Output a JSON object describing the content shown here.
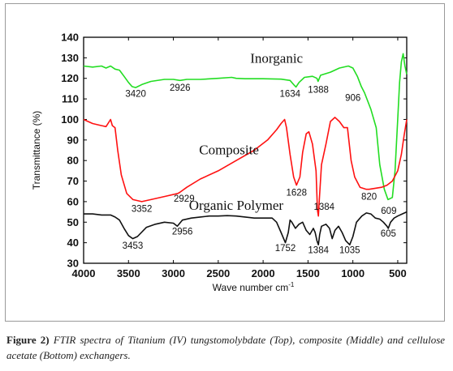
{
  "chart_data": {
    "type": "line",
    "xlabel": "Wave number cm",
    "xlabel_sup": "-1",
    "ylabel": "Transmittance (%)",
    "xlim": [
      4000,
      400
    ],
    "ylim": [
      30,
      140
    ],
    "x_ticks": [
      4000,
      3500,
      3000,
      2500,
      2000,
      1500,
      1000,
      500
    ],
    "y_ticks": [
      30,
      40,
      50,
      60,
      70,
      80,
      90,
      100,
      110,
      120,
      130,
      140
    ],
    "series": [
      {
        "name": "Inorganic",
        "color": "#22dd22",
        "label_pos": [
          1850,
          127.5
        ],
        "points": [
          [
            4000,
            126
          ],
          [
            3900,
            125.5
          ],
          [
            3800,
            126
          ],
          [
            3750,
            125
          ],
          [
            3700,
            126
          ],
          [
            3650,
            124.5
          ],
          [
            3600,
            124
          ],
          [
            3550,
            121
          ],
          [
            3500,
            118
          ],
          [
            3460,
            116
          ],
          [
            3420,
            115.5
          ],
          [
            3350,
            117
          ],
          [
            3250,
            118.5
          ],
          [
            3100,
            119.5
          ],
          [
            3000,
            119.5
          ],
          [
            2926,
            119
          ],
          [
            2850,
            119.5
          ],
          [
            2700,
            119.5
          ],
          [
            2500,
            120
          ],
          [
            2350,
            120.5
          ],
          [
            2300,
            120
          ],
          [
            2200,
            119.8
          ],
          [
            2000,
            119.8
          ],
          [
            1800,
            119.6
          ],
          [
            1700,
            119
          ],
          [
            1650,
            116.5
          ],
          [
            1634,
            115.8
          ],
          [
            1600,
            118
          ],
          [
            1540,
            120.5
          ],
          [
            1450,
            121
          ],
          [
            1400,
            120
          ],
          [
            1388,
            118.5
          ],
          [
            1360,
            121.5
          ],
          [
            1250,
            123
          ],
          [
            1150,
            125
          ],
          [
            1050,
            126
          ],
          [
            1000,
            125
          ],
          [
            950,
            121
          ],
          [
            906,
            116
          ],
          [
            870,
            113
          ],
          [
            800,
            105
          ],
          [
            740,
            96
          ],
          [
            700,
            78
          ],
          [
            650,
            66
          ],
          [
            609,
            61
          ],
          [
            560,
            62
          ],
          [
            530,
            75
          ],
          [
            500,
            100
          ],
          [
            480,
            118
          ],
          [
            460,
            128
          ],
          [
            440,
            132
          ],
          [
            420,
            126
          ],
          [
            400,
            122
          ]
        ],
        "annotations": [
          {
            "text": "3420",
            "x": 3420,
            "y": 111
          },
          {
            "text": "2926",
            "x": 2926,
            "y": 114
          },
          {
            "text": "1634",
            "x": 1700,
            "y": 111
          },
          {
            "text": "1388",
            "x": 1385,
            "y": 113
          },
          {
            "text": "906",
            "x": 1000,
            "y": 109
          },
          {
            "text": "609",
            "x": 600,
            "y": 54
          }
        ]
      },
      {
        "name": "Composite",
        "color": "#ff1111",
        "label_pos": [
          2380,
          83
        ],
        "points": [
          [
            4000,
            100
          ],
          [
            3900,
            98
          ],
          [
            3800,
            97
          ],
          [
            3750,
            96.5
          ],
          [
            3700,
            100
          ],
          [
            3680,
            97
          ],
          [
            3650,
            96
          ],
          [
            3620,
            85
          ],
          [
            3580,
            73
          ],
          [
            3520,
            64
          ],
          [
            3450,
            61
          ],
          [
            3352,
            60
          ],
          [
            3250,
            61
          ],
          [
            3100,
            62.5
          ],
          [
            2950,
            64
          ],
          [
            2929,
            64.5
          ],
          [
            2850,
            67
          ],
          [
            2700,
            71
          ],
          [
            2500,
            75
          ],
          [
            2300,
            80
          ],
          [
            2100,
            85
          ],
          [
            1950,
            90
          ],
          [
            1850,
            95
          ],
          [
            1800,
            98
          ],
          [
            1760,
            100
          ],
          [
            1740,
            96
          ],
          [
            1700,
            83
          ],
          [
            1660,
            72
          ],
          [
            1628,
            68
          ],
          [
            1590,
            72
          ],
          [
            1560,
            84
          ],
          [
            1520,
            93
          ],
          [
            1490,
            94
          ],
          [
            1450,
            88
          ],
          [
            1410,
            75
          ],
          [
            1395,
            56
          ],
          [
            1384,
            53
          ],
          [
            1372,
            62
          ],
          [
            1350,
            78
          ],
          [
            1300,
            88
          ],
          [
            1250,
            99
          ],
          [
            1200,
            101
          ],
          [
            1150,
            99
          ],
          [
            1100,
            96
          ],
          [
            1060,
            96
          ],
          [
            1020,
            80
          ],
          [
            980,
            72
          ],
          [
            920,
            67
          ],
          [
            850,
            66
          ],
          [
            820,
            66
          ],
          [
            750,
            66.5
          ],
          [
            680,
            67
          ],
          [
            620,
            68
          ],
          [
            560,
            70
          ],
          [
            500,
            75
          ],
          [
            460,
            83
          ],
          [
            430,
            92
          ],
          [
            400,
            100
          ]
        ],
        "annotations": [
          {
            "text": "3352",
            "x": 3352,
            "y": 55
          },
          {
            "text": "2929",
            "x": 2880,
            "y": 60
          },
          {
            "text": "1628",
            "x": 1628,
            "y": 63
          },
          {
            "text": "1384",
            "x": 1320,
            "y": 56
          },
          {
            "text": "820",
            "x": 820,
            "y": 61
          }
        ]
      },
      {
        "name": "Organic Polymer",
        "color": "#111111",
        "label_pos": [
          2300,
          56
        ],
        "points": [
          [
            4000,
            54
          ],
          [
            3900,
            54
          ],
          [
            3800,
            53.5
          ],
          [
            3700,
            53.5
          ],
          [
            3650,
            52.5
          ],
          [
            3600,
            51
          ],
          [
            3550,
            47
          ],
          [
            3500,
            43.5
          ],
          [
            3453,
            42
          ],
          [
            3400,
            43
          ],
          [
            3300,
            47.5
          ],
          [
            3200,
            49
          ],
          [
            3100,
            50
          ],
          [
            3000,
            49.5
          ],
          [
            2956,
            48
          ],
          [
            2900,
            51
          ],
          [
            2800,
            52
          ],
          [
            2700,
            52.5
          ],
          [
            2600,
            53
          ],
          [
            2500,
            53
          ],
          [
            2400,
            53.2
          ],
          [
            2300,
            53
          ],
          [
            2200,
            52.5
          ],
          [
            2100,
            52
          ],
          [
            2000,
            52
          ],
          [
            1900,
            52
          ],
          [
            1850,
            50
          ],
          [
            1800,
            45
          ],
          [
            1752,
            40
          ],
          [
            1720,
            45
          ],
          [
            1700,
            51
          ],
          [
            1680,
            50
          ],
          [
            1640,
            47
          ],
          [
            1600,
            49
          ],
          [
            1560,
            50
          ],
          [
            1520,
            46
          ],
          [
            1480,
            44
          ],
          [
            1440,
            47
          ],
          [
            1420,
            45
          ],
          [
            1400,
            41
          ],
          [
            1384,
            39
          ],
          [
            1370,
            44
          ],
          [
            1350,
            48
          ],
          [
            1300,
            49
          ],
          [
            1260,
            47
          ],
          [
            1230,
            42
          ],
          [
            1200,
            46
          ],
          [
            1160,
            48
          ],
          [
            1120,
            45
          ],
          [
            1080,
            41
          ],
          [
            1035,
            39
          ],
          [
            1000,
            43
          ],
          [
            960,
            50
          ],
          [
            900,
            53
          ],
          [
            850,
            54.5
          ],
          [
            800,
            54
          ],
          [
            750,
            52
          ],
          [
            700,
            51.5
          ],
          [
            660,
            50
          ],
          [
            620,
            48
          ],
          [
            605,
            47
          ],
          [
            580,
            50
          ],
          [
            540,
            52
          ],
          [
            500,
            53
          ],
          [
            450,
            54
          ],
          [
            400,
            55
          ]
        ],
        "annotations": [
          {
            "text": "3453",
            "x": 3453,
            "y": 37
          },
          {
            "text": "2956",
            "x": 2900,
            "y": 44
          },
          {
            "text": "1752",
            "x": 1752,
            "y": 36
          },
          {
            "text": "1384",
            "x": 1384,
            "y": 35
          },
          {
            "text": "1035",
            "x": 1035,
            "y": 35
          },
          {
            "text": "605",
            "x": 605,
            "y": 43
          }
        ]
      }
    ]
  },
  "caption": {
    "label": "Figure 2)",
    "text": "FTIR spectra of Titanium (IV) tungstomolybdate (Top), composite (Middle) and cellulose acetate (Bottom) exchangers."
  }
}
